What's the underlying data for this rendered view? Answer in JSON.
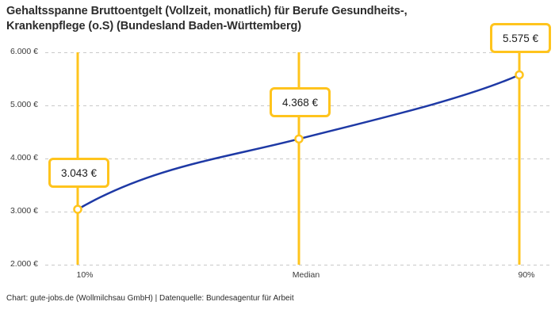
{
  "title": {
    "line1": "Gehaltsspanne Bruttoentgelt (Vollzeit, monatlich) für Berufe Gesundheits-,",
    "line2": "Krankenpflege (o.S) (Bundesland Baden-Württemberg)"
  },
  "footer": "Chart: gute-jobs.de (Wollmilchsau GmbH) | Datenquelle: Bundesagentur für Arbeit",
  "chart_data": {
    "type": "line",
    "title": "Gehaltsspanne Bruttoentgelt (Vollzeit, monatlich) für Berufe Gesundheits-, Krankenpflege (o.S) (Bundesland Baden-Württemberg)",
    "categories": [
      "10%",
      "Median",
      "90%"
    ],
    "values": [
      3043,
      4368,
      5575
    ],
    "value_labels": [
      "3.043 €",
      "4.368 €",
      "5.575 €"
    ],
    "unit": "€",
    "ylim": [
      2000,
      6000
    ],
    "y_ticks": [
      {
        "value": 6000,
        "label": "6.000 €"
      },
      {
        "value": 5000,
        "label": "5.000 €"
      },
      {
        "value": 4000,
        "label": "4.000 €"
      },
      {
        "value": 3000,
        "label": "3.000 €"
      },
      {
        "value": 2000,
        "label": "2.000 €"
      }
    ],
    "xlabel": "",
    "ylabel": "",
    "grid": "horizontal-dashed",
    "legend": "none",
    "colors": {
      "line": "#1e39a5",
      "marker_fill": "#ffffff",
      "marker_stroke": "#ffc41d",
      "percentile_line": "#ffc41d",
      "label_box_border": "#ffc41d",
      "grid": "#c9c9c9",
      "text": "#2c2c2c"
    }
  }
}
